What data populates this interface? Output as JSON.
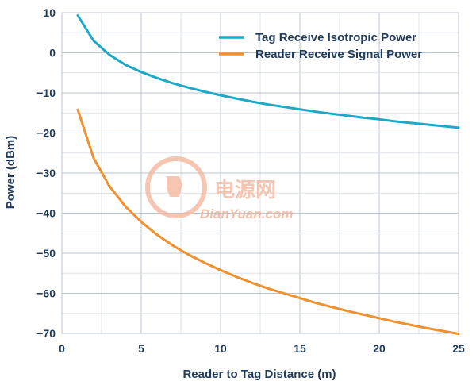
{
  "chart_data": {
    "type": "line",
    "title": "",
    "xlabel": "Reader to Tag Distance (m)",
    "ylabel": "Power (dBm)",
    "xlim": [
      0,
      25
    ],
    "ylim": [
      -70,
      10
    ],
    "xticks": [
      0,
      5,
      10,
      15,
      20,
      25
    ],
    "yticks": [
      10,
      0,
      -10,
      -20,
      -30,
      -40,
      -50,
      -60,
      -70
    ],
    "grid": true,
    "legend_position": "top-right",
    "series": [
      {
        "name": "Tag Receive Isotropic Power",
        "color": "#1ea8c8",
        "x": [
          1,
          2,
          3,
          4,
          5,
          6,
          7,
          8,
          9,
          10,
          11,
          12,
          13,
          14,
          15,
          16,
          17,
          18,
          19,
          20,
          21,
          22,
          23,
          24,
          25
        ],
        "y": [
          9.3,
          3,
          -0.5,
          -3,
          -4.8,
          -6.3,
          -7.6,
          -8.7,
          -9.7,
          -10.6,
          -11.4,
          -12.2,
          -12.9,
          -13.5,
          -14.1,
          -14.7,
          -15.2,
          -15.7,
          -16.2,
          -16.6,
          -17.1,
          -17.5,
          -17.9,
          -18.3,
          -18.7
        ]
      },
      {
        "name": "Reader Receive Signal Power",
        "color": "#f0902e",
        "x": [
          1,
          2,
          3,
          4,
          5,
          6,
          7,
          8,
          9,
          10,
          11,
          12,
          13,
          14,
          15,
          16,
          17,
          18,
          19,
          20,
          21,
          22,
          23,
          24,
          25
        ],
        "y": [
          -14.2,
          -26.3,
          -33.3,
          -38.3,
          -42.2,
          -45.4,
          -48.1,
          -50.4,
          -52.4,
          -54.2,
          -55.9,
          -57.4,
          -58.8,
          -60,
          -61.2,
          -62.4,
          -63.4,
          -64.4,
          -65.3,
          -66.2,
          -67.1,
          -67.9,
          -68.7,
          -69.4,
          -70.1
        ]
      }
    ]
  },
  "watermark": {
    "cn_text": "电源网",
    "en_text": "DianYuan.com",
    "color": "#f0a080"
  }
}
